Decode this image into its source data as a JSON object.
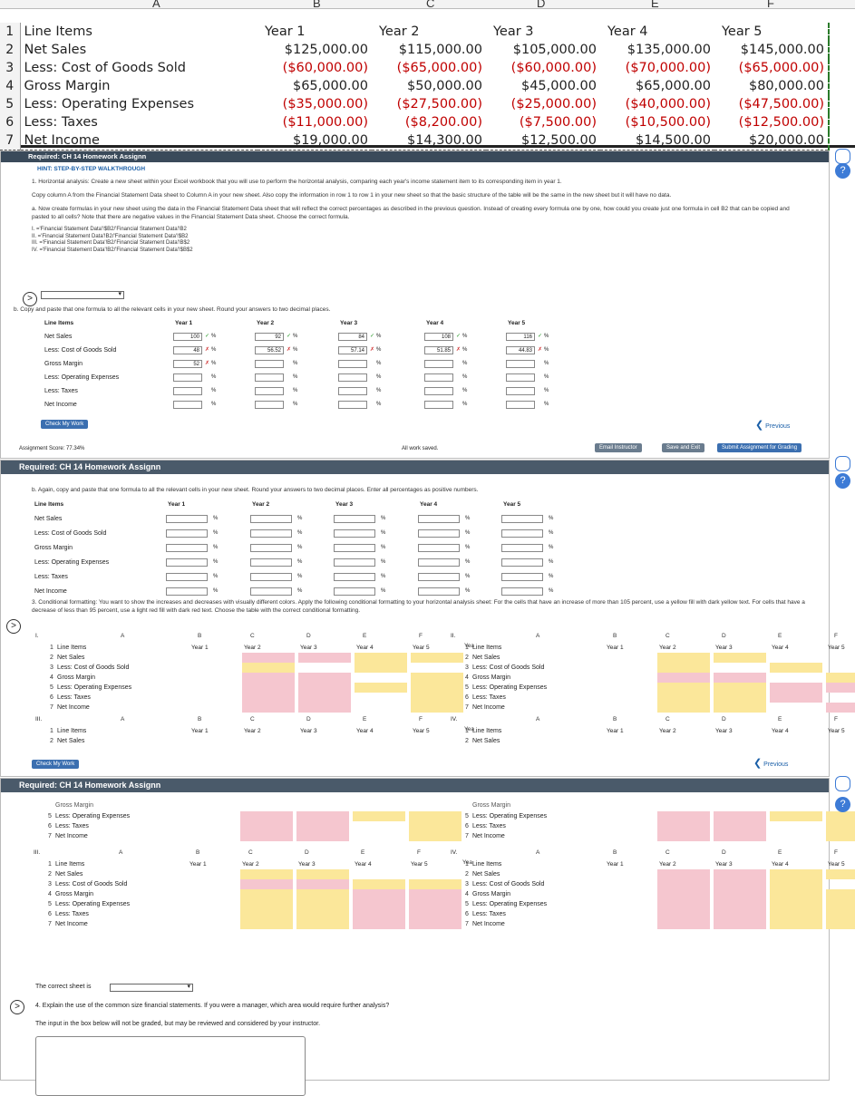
{
  "sheet": {
    "col_letters": [
      "A",
      "B",
      "C",
      "D",
      "E",
      "F"
    ],
    "rows": [
      {
        "n": "1",
        "label": "Line Items",
        "vals": [
          "Year 1",
          "Year 2",
          "Year 3",
          "Year 4",
          "Year 5"
        ]
      },
      {
        "n": "2",
        "label": "Net Sales",
        "vals": [
          "$125,000.00",
          "$115,000.00",
          "$105,000.00",
          "$135,000.00",
          "$145,000.00"
        ]
      },
      {
        "n": "3",
        "label": "Less: Cost of Goods Sold",
        "vals": [
          "($60,000.00)",
          "($65,000.00)",
          "($60,000.00)",
          "($70,000.00)",
          "($65,000.00)"
        ]
      },
      {
        "n": "4",
        "label": "Gross Margin",
        "vals": [
          "$65,000.00",
          "$50,000.00",
          "$45,000.00",
          "$65,000.00",
          "$80,000.00"
        ]
      },
      {
        "n": "5",
        "label": "Less: Operating Expenses",
        "vals": [
          "($35,000.00)",
          "($27,500.00)",
          "($25,000.00)",
          "($40,000.00)",
          "($47,500.00)"
        ]
      },
      {
        "n": "6",
        "label": "Less: Taxes",
        "vals": [
          "($11,000.00)",
          "($8,200.00)",
          "($7,500.00)",
          "($10,500.00)",
          "($12,500.00)"
        ]
      },
      {
        "n": "7",
        "label": "Net Income",
        "vals": [
          "$19,000.00",
          "$14,300.00",
          "$12,500.00",
          "$14,500.00",
          "$20,000.00"
        ]
      }
    ]
  },
  "panel1": {
    "title": "Required: CH 14 Homework Assignn",
    "hint": "HINT: STEP-BY-STEP WALKTHROUGH",
    "p1": "1. Horizontal analysis: Create a new sheet within your Excel workbook that you will use to perform the horizontal analysis, comparing each year's income statement item to its corresponding item in year 1.",
    "p2": "Copy column A from the Financial Statement Data sheet to Column A in your new sheet. Also copy the information in row 1 to row 1 in your new sheet so that the basic structure of the table will be the same in the new sheet but it will have no data.",
    "p3": "a. Now create formulas in your new sheet using the data in the Financial Statement Data sheet that will reflect the correct percentages as described in the previous question. Instead of creating every formula one by one, how could you create just one formula in cell B2 that can be copied and pasted to all cells? Note that there are negative values in the Financial Statement Data sheet. Choose the correct formula.",
    "options": [
      "I. ='Financial Statement Data'!$B2/'Financial Statement Data'!B2",
      "II. ='Financial Statement Data'!B2/'Financial Statement Data'!$B2",
      "III. ='Financial Statement Data'!B2/'Financial Statement Data'!B$2",
      "IV. ='Financial Statement Data'!B2/'Financial Statement Data'!$B$2"
    ],
    "pb": "b. Copy and paste that one formula to all the relevant cells in your new sheet. Round your answers to two decimal places.",
    "headers": [
      "Line Items",
      "Year 1",
      "Year 2",
      "Year 3",
      "Year 4",
      "Year 5"
    ],
    "row_labels": [
      "Net Sales",
      "Less: Cost of Goods Sold",
      "Gross Margin",
      "Less: Operating Expenses",
      "Less: Taxes",
      "Net Income"
    ],
    "answers": [
      [
        {
          "v": "100",
          "m": "ok"
        },
        {
          "v": "92",
          "m": "ok"
        },
        {
          "v": "84",
          "m": "ok"
        },
        {
          "v": "108",
          "m": "ok"
        },
        {
          "v": "116",
          "m": "ok"
        }
      ],
      [
        {
          "v": "48",
          "m": "bad"
        },
        {
          "v": "56.52",
          "m": "bad"
        },
        {
          "v": "57.14",
          "m": "bad"
        },
        {
          "v": "51.85",
          "m": "bad"
        },
        {
          "v": "44.83",
          "m": "bad"
        }
      ],
      [
        {
          "v": "52",
          "m": "bad"
        },
        {
          "v": "",
          "m": ""
        },
        {
          "v": "",
          "m": ""
        },
        {
          "v": "",
          "m": ""
        },
        {
          "v": "",
          "m": ""
        }
      ],
      [
        {
          "v": "",
          "m": ""
        },
        {
          "v": "",
          "m": ""
        },
        {
          "v": "",
          "m": ""
        },
        {
          "v": "",
          "m": ""
        },
        {
          "v": "",
          "m": ""
        }
      ],
      [
        {
          "v": "",
          "m": ""
        },
        {
          "v": "",
          "m": ""
        },
        {
          "v": "",
          "m": ""
        },
        {
          "v": "",
          "m": ""
        },
        {
          "v": "",
          "m": ""
        }
      ],
      [
        {
          "v": "",
          "m": ""
        },
        {
          "v": "",
          "m": ""
        },
        {
          "v": "",
          "m": ""
        },
        {
          "v": "",
          "m": ""
        },
        {
          "v": "",
          "m": ""
        }
      ]
    ],
    "pct": "%",
    "check": "Check My Work",
    "previous": "Previous",
    "score": "Assignment Score: 77.34%",
    "saved": "All work saved.",
    "email": "Email Instructor",
    "save_exit": "Save and Exit",
    "submit": "Submit Assignment for Grading"
  },
  "panel2": {
    "title": "Required: CH 14 Homework Assignn",
    "pb": "b. Again, copy and paste that one formula to all the relevant cells in your new sheet. Round your answers to two decimal places. Enter all percentages as positive numbers.",
    "p3": "3. Conditional formatting: You want to show the increases and decreases with visually different colors. Apply the following conditional formatting to your horizontal analysis sheet: For the cells that have an increase of more than 105 percent, use a yellow fill with dark yellow text. For cells that have a decrease of less than 95 percent, use a light red fill with dark red text. Choose the table with the correct conditional formatting.",
    "mini_labels": [
      "Line Items",
      "Net Sales",
      "Less: Cost of Goods Sold",
      "Gross Margin",
      "Less: Operating Expenses",
      "Less: Taxes",
      "Net Income"
    ],
    "mini_cols": [
      "A",
      "B",
      "C",
      "D",
      "E",
      "F"
    ],
    "mini_years": [
      "Year 1",
      "Year 2",
      "Year 3",
      "Year 4",
      "Year 5"
    ],
    "roman": [
      "I.",
      "II.",
      "III.",
      "IV."
    ],
    "yea": "Yea",
    "check": "Check My Work",
    "previous": "Previous"
  },
  "panel3": {
    "title": "Required: CH 14 Homework Assignn",
    "gm_cut": "Gross Margin",
    "correct_sheet": "The correct sheet is",
    "q4": "4. Explain the use of the common size financial statements. If you were a manager, which area would require further analysis?",
    "note": "The input in the box below will not be graded, but may be reviewed and considered by your instructor."
  },
  "icons": {
    "question": "?",
    "chevron": ">"
  },
  "colors": {
    "yellow": "#fbe79a",
    "pink": "#f5c6cf",
    "blue": "#3b6fb0",
    "header": "#3a4a5a"
  }
}
